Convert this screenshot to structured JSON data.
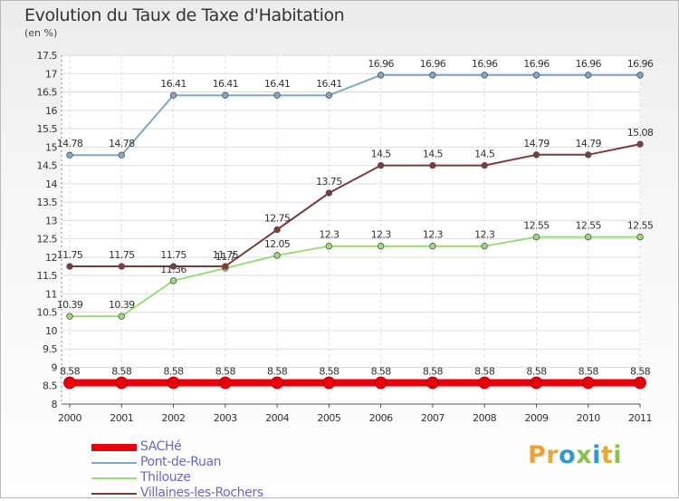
{
  "header": {
    "title": "Evolution du Taux de Taxe d'Habitation",
    "subtitle": "(en %)"
  },
  "brand": {
    "text": "Proxiti",
    "colors": [
      "#f0a030",
      "#e8a830",
      "#3399cc",
      "#8bc34a",
      "#3399cc",
      "#e8a830",
      "#8bc34a"
    ]
  },
  "chart_data": {
    "type": "line",
    "title": "Evolution du Taux de Taxe d'Habitation",
    "subtitle": "(en %)",
    "xlabel": "",
    "ylabel": "",
    "x": [
      "2000",
      "2001",
      "2002",
      "2003",
      "2004",
      "2005",
      "2006",
      "2007",
      "2008",
      "2009",
      "2010",
      "2011"
    ],
    "ylim": [
      8,
      17.5
    ],
    "yticks": [
      "8",
      "8.5",
      "9",
      "9.5",
      "10",
      "10.5",
      "11",
      "11.5",
      "12",
      "12.5",
      "13",
      "13.5",
      "14",
      "14.5",
      "15",
      "15.5",
      "16",
      "16.5",
      "17",
      "17.5"
    ],
    "grid": true,
    "legend_position": "bottom-left",
    "series": [
      {
        "name": "SACHé",
        "color": "#e8000b",
        "emphasis": true,
        "values": [
          8.58,
          8.58,
          8.58,
          8.58,
          8.58,
          8.58,
          8.58,
          8.58,
          8.58,
          8.58,
          8.58,
          8.58
        ],
        "labels": [
          "8.58",
          "8.58",
          "8.58",
          "8.58",
          "8.58",
          "8.58",
          "8.58",
          "8.58",
          "8.58",
          "8.58",
          "8.58",
          "8.58"
        ]
      },
      {
        "name": "Pont-de-Ruan",
        "color": "#7fa7cc",
        "emphasis": false,
        "values": [
          14.78,
          14.78,
          16.41,
          16.41,
          16.41,
          16.41,
          16.96,
          16.96,
          16.96,
          16.96,
          16.96,
          16.96
        ],
        "labels": [
          "14.78",
          "14.78",
          "16.41",
          "16.41",
          "16.41",
          "16.41",
          "16.96",
          "16.96",
          "16.96",
          "16.96",
          "16.96",
          "16.96"
        ]
      },
      {
        "name": "Thilouze",
        "color": "#99dd77",
        "emphasis": false,
        "values": [
          10.39,
          10.39,
          11.36,
          11.7,
          12.05,
          12.3,
          12.3,
          12.3,
          12.3,
          12.55,
          12.55,
          12.55
        ],
        "labels": [
          "10.39",
          "10.39",
          "11.36",
          "11.7",
          "12.05",
          "12.3",
          "12.3",
          "12.3",
          "12.3",
          "12.55",
          "12.55",
          "12.55"
        ]
      },
      {
        "name": "Villaines-les-Rochers",
        "color": "#7d3b3b",
        "emphasis": false,
        "values": [
          11.75,
          11.75,
          11.75,
          11.75,
          12.75,
          13.75,
          14.5,
          14.5,
          14.5,
          14.79,
          14.79,
          15.08
        ],
        "labels": [
          "11.75",
          "11.75",
          "11.75",
          "11.75",
          "12.75",
          "13.75",
          "14.5",
          "14.5",
          "14.5",
          "14.79",
          "14.79",
          "15.08"
        ]
      }
    ]
  }
}
